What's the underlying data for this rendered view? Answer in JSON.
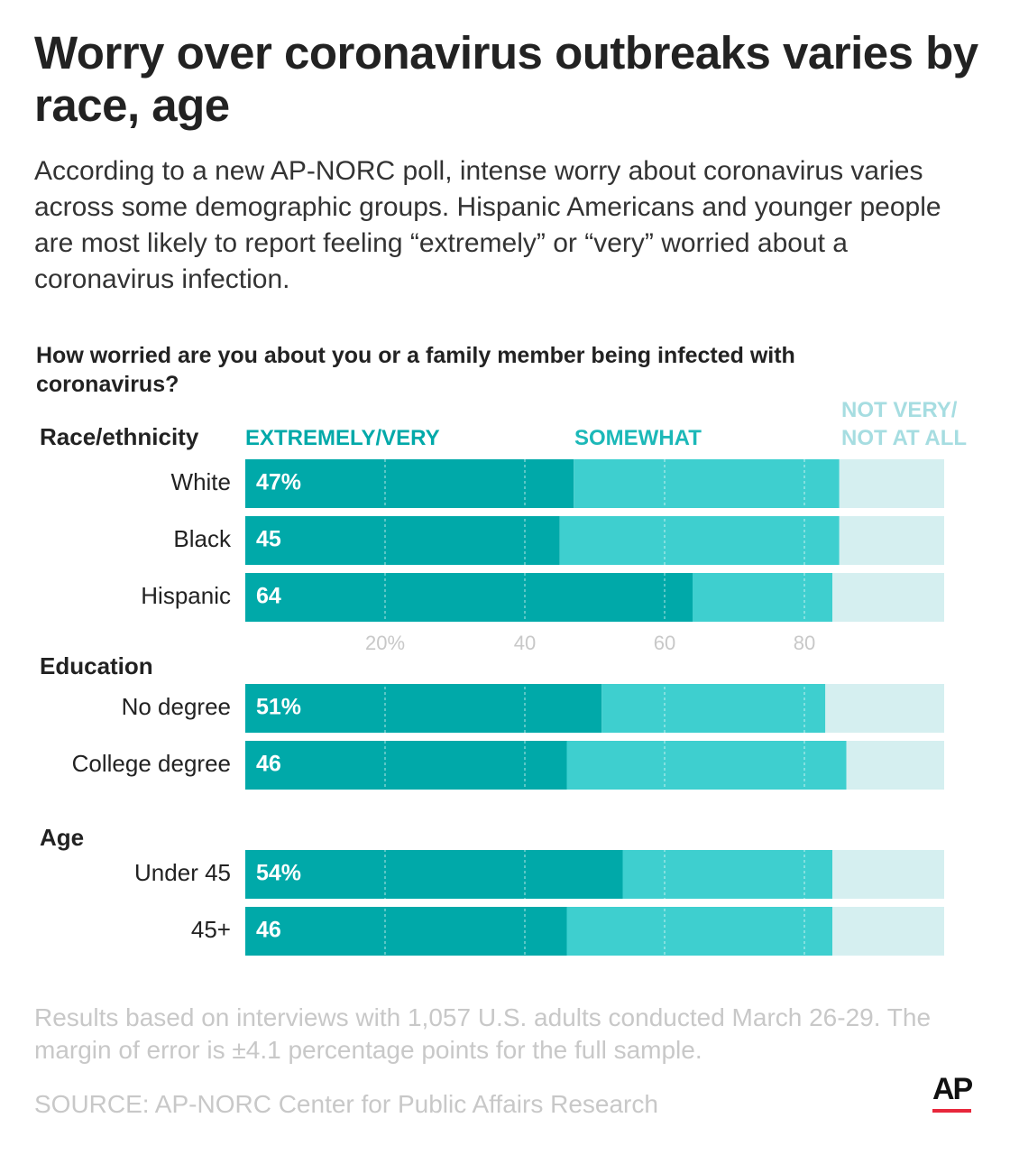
{
  "chart_data": {
    "type": "stacked-bar-horizontal",
    "title": "Worry over coronavirus outbreaks varies by race, age",
    "subtitle": "According to a new AP-NORC poll, intense worry about coronavirus varies across some demographic groups. Hispanic Americans and younger people are most likely to report feeling “extremely” or “very” worried about a coronavirus infection.",
    "question": "How worried are you about you or a family member being infected with coronavirus?",
    "groups": [
      {
        "name": "Race/ethnicity",
        "categories": [
          "White",
          "Black",
          "Hispanic"
        ]
      },
      {
        "name": "Education",
        "categories": [
          "No degree",
          "College degree"
        ]
      },
      {
        "name": "Age",
        "categories": [
          "Under 45",
          "45+"
        ]
      }
    ],
    "series": [
      {
        "name": "EXTREMELY/VERY",
        "color": "#00a9a9",
        "values": [
          47,
          45,
          64,
          51,
          46,
          54,
          46
        ],
        "value_labels": [
          "47%",
          "45",
          "64",
          "51%",
          "46",
          "54%",
          "46"
        ]
      },
      {
        "name": "SOMEWHAT",
        "color": "#3ecfcf",
        "values": [
          38,
          40,
          20,
          32,
          40,
          30,
          38
        ]
      },
      {
        "name": "NOT VERY/ NOT AT ALL",
        "color": "#d5eff0",
        "values": [
          15,
          15,
          16,
          17,
          14,
          16,
          16
        ]
      }
    ],
    "xlim": [
      0,
      100
    ],
    "xticks": [
      {
        "value": 20,
        "label": "20%"
      },
      40,
      60,
      80
    ],
    "grid": true,
    "note": "Results based on interviews with 1,057 U.S. adults conducted March 26-29. The margin of error is ±4.1 percentage points for the full sample.",
    "source": "SOURCE: AP-NORC Center for Public Affairs Research"
  },
  "logo": "AP"
}
